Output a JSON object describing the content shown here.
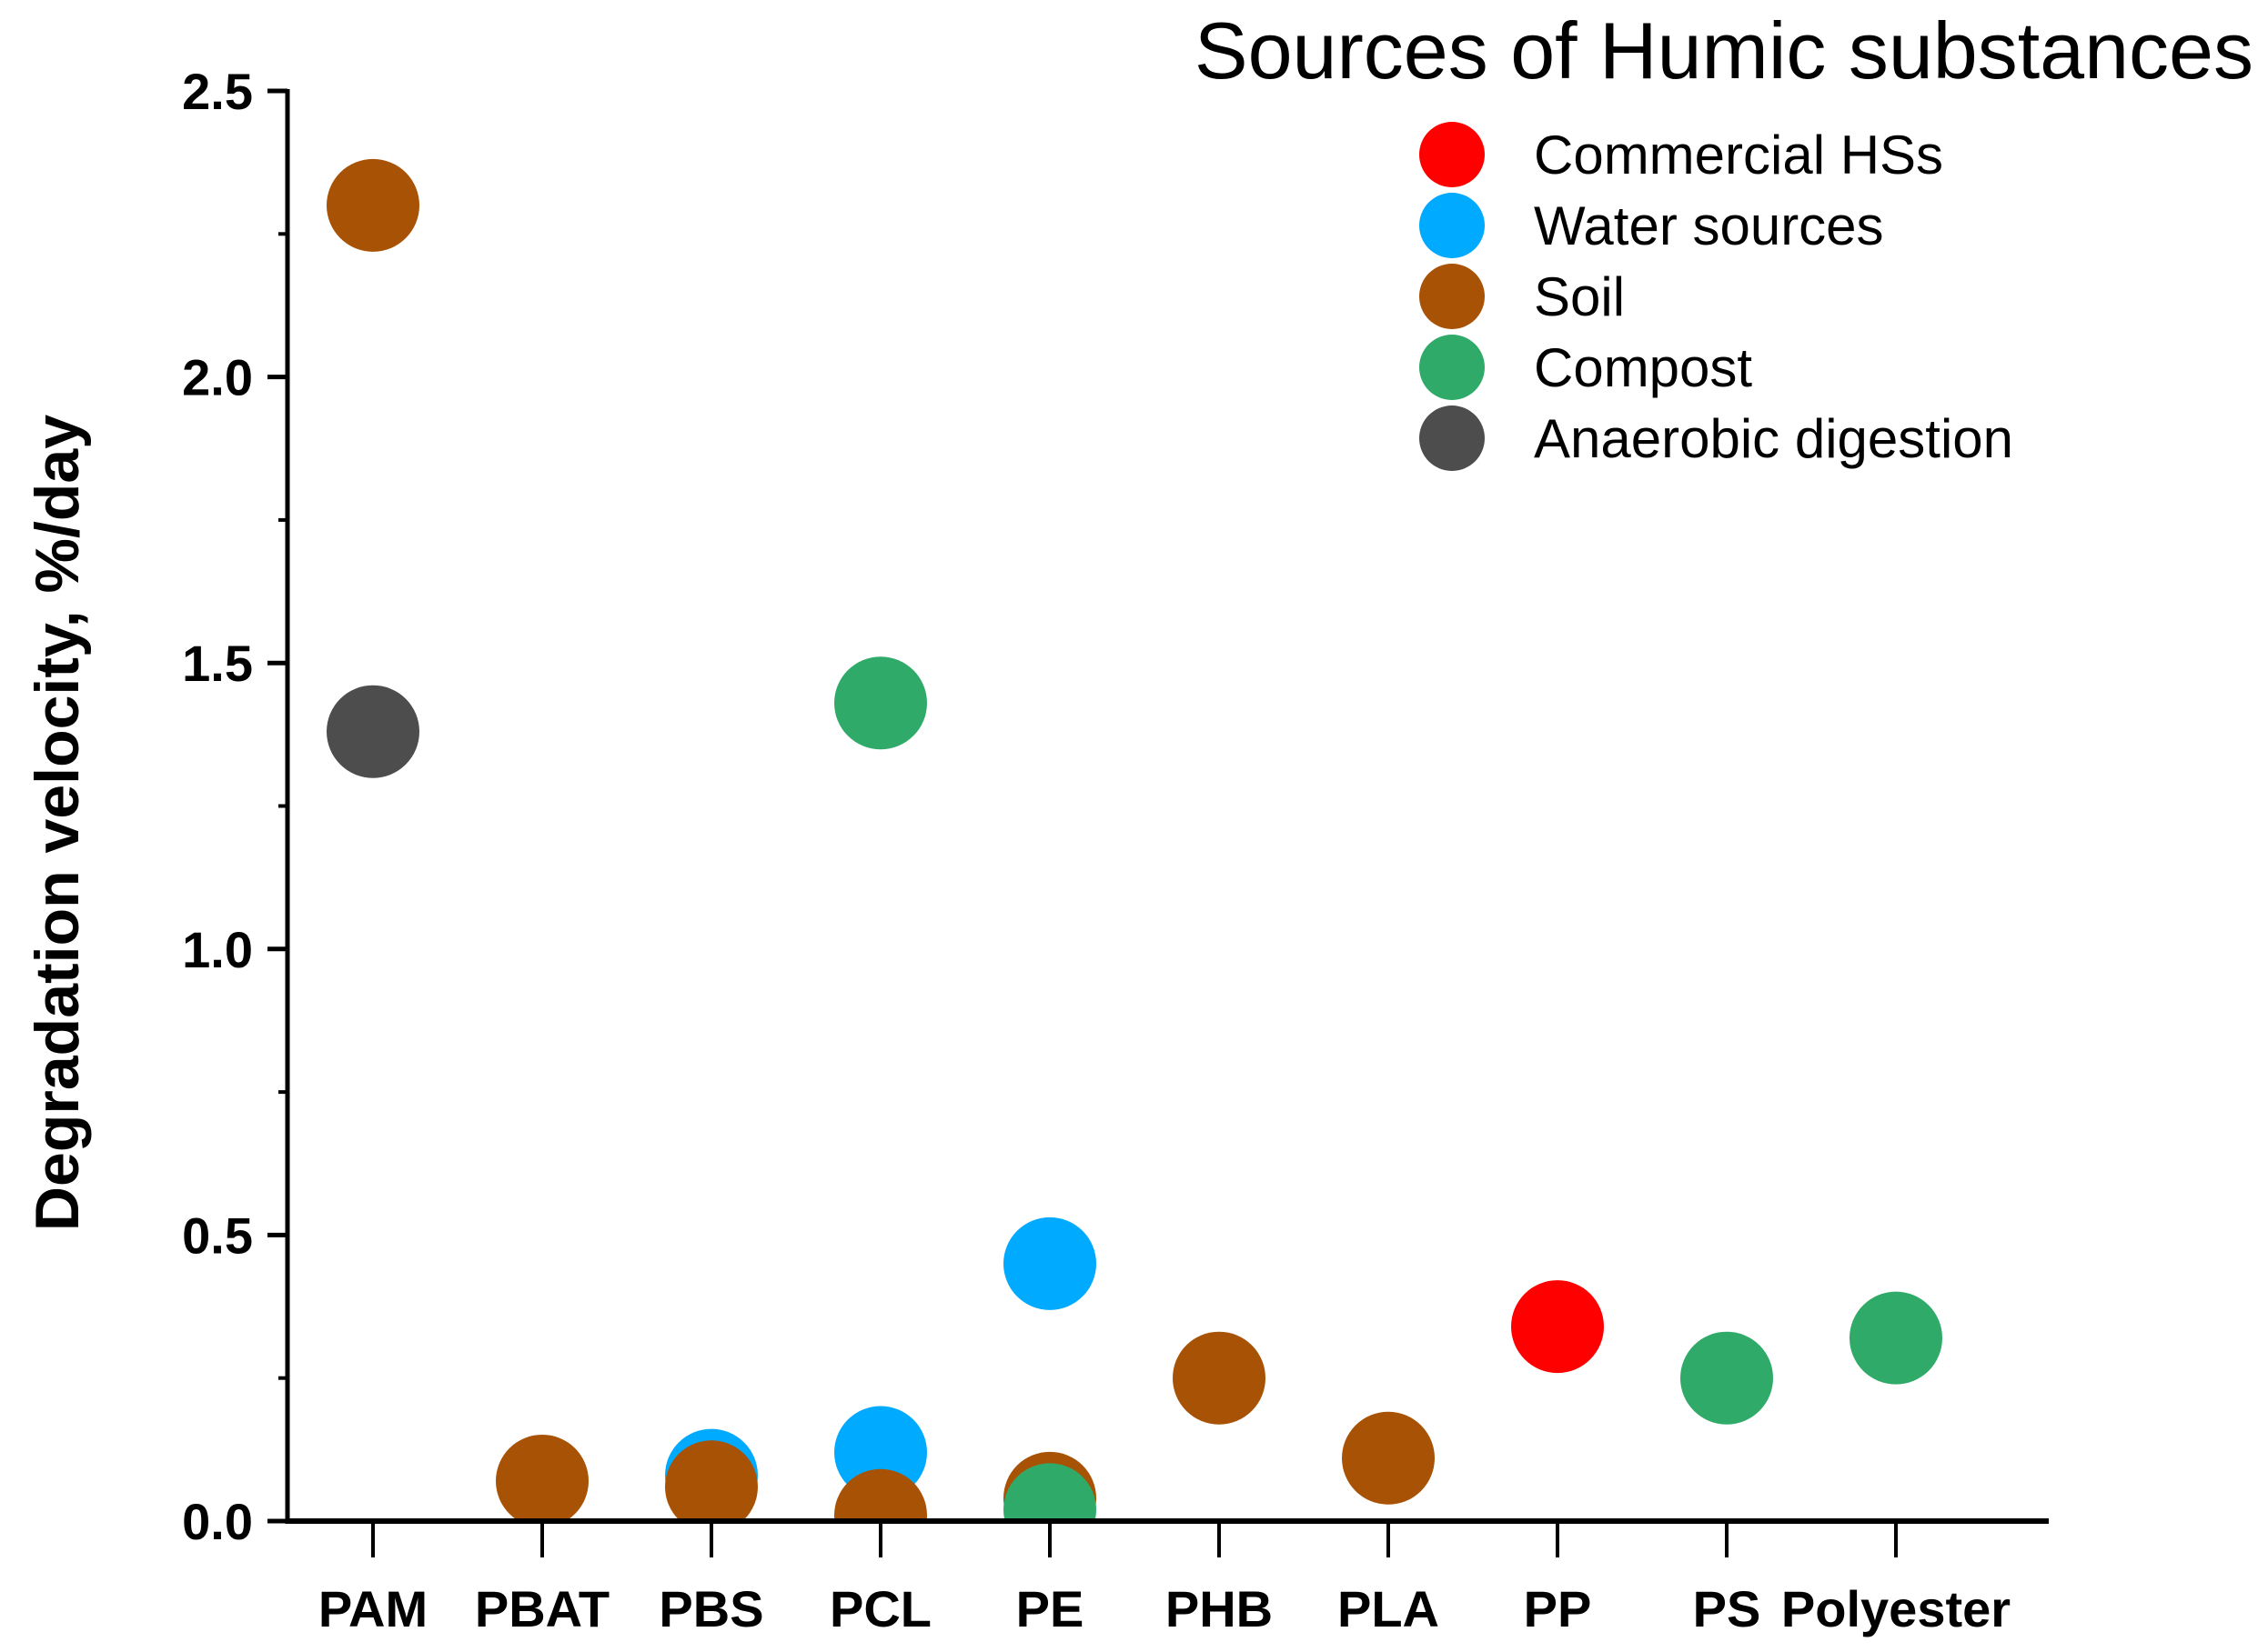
{
  "chart_data": {
    "type": "scatter",
    "title": "",
    "xlabel": "",
    "ylabel": "Degradation velocity, %/day",
    "ylim": [
      0,
      2.5
    ],
    "yticks": [
      "0.0",
      "0.5",
      "1.0",
      "1.5",
      "2.0",
      "2.5"
    ],
    "ytick_values": [
      0,
      0.5,
      1.0,
      1.5,
      2.0,
      2.5
    ],
    "categories": [
      "PAM",
      "PBAT",
      "PBS",
      "PCL",
      "PE",
      "PHB",
      "PLA",
      "PP",
      "PS",
      "Polyester"
    ],
    "legend": {
      "title": "Sources of Humic substances",
      "placement": "top-right",
      "entries": [
        {
          "key": "commercial",
          "label": "Commercial  HSs",
          "color": "#ff0000"
        },
        {
          "key": "water",
          "label": "Water sources",
          "color": "#00aaff"
        },
        {
          "key": "soil",
          "label": "Soil",
          "color": "#a85205"
        },
        {
          "key": "compost",
          "label": "Compost",
          "color": "#2faa69"
        },
        {
          "key": "anaerobic",
          "label": "Anaerobic digestion",
          "color": "#4d4d4d"
        }
      ]
    },
    "points": [
      {
        "category": "PAM",
        "series": "soil",
        "y": 2.3
      },
      {
        "category": "PAM",
        "series": "anaerobic",
        "y": 1.38
      },
      {
        "category": "PBAT",
        "series": "soil",
        "y": 0.07
      },
      {
        "category": "PBS",
        "series": "water",
        "y": 0.08
      },
      {
        "category": "PBS",
        "series": "soil",
        "y": 0.06
      },
      {
        "category": "PCL",
        "series": "compost",
        "y": 1.43
      },
      {
        "category": "PCL",
        "series": "water",
        "y": 0.12
      },
      {
        "category": "PCL",
        "series": "soil",
        "y": 0.01
      },
      {
        "category": "PE",
        "series": "water",
        "y": 0.45
      },
      {
        "category": "PE",
        "series": "soil",
        "y": 0.04
      },
      {
        "category": "PE",
        "series": "compost",
        "y": 0.02
      },
      {
        "category": "PHB",
        "series": "soil",
        "y": 0.25
      },
      {
        "category": "PLA",
        "series": "soil",
        "y": 0.11
      },
      {
        "category": "PP",
        "series": "commercial",
        "y": 0.34
      },
      {
        "category": "PS",
        "series": "compost",
        "y": 0.25
      },
      {
        "category": "Polyester",
        "series": "compost",
        "y": 0.32
      }
    ]
  }
}
